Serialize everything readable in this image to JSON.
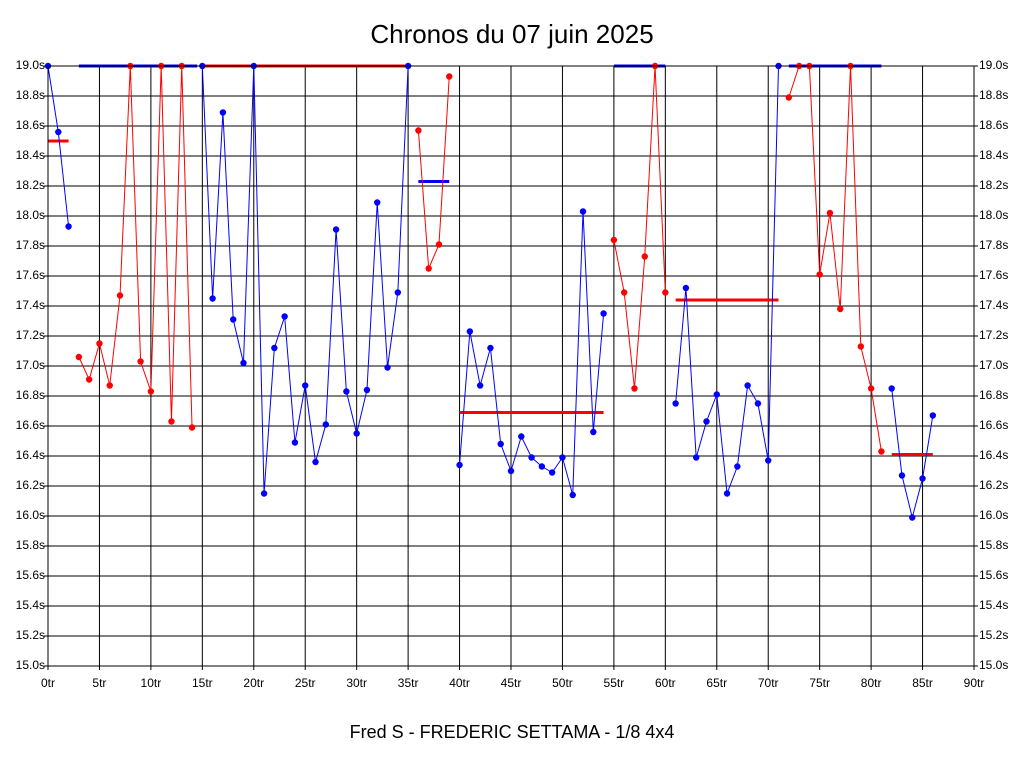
{
  "chart_data": {
    "type": "line",
    "title": "Chronos du 07 juin 2025",
    "footer": "Fred S - FREDERIC SETTAMA - 1/8 4x4",
    "grid": true,
    "xlim": [
      0,
      90
    ],
    "ylim": [
      15.0,
      19.0
    ],
    "xticks": [
      {
        "value": 0,
        "label": "0tr"
      },
      {
        "value": 5,
        "label": "5tr"
      },
      {
        "value": 10,
        "label": "10tr"
      },
      {
        "value": 15,
        "label": "15tr"
      },
      {
        "value": 20,
        "label": "20tr"
      },
      {
        "value": 25,
        "label": "25tr"
      },
      {
        "value": 30,
        "label": "30tr"
      },
      {
        "value": 35,
        "label": "35tr"
      },
      {
        "value": 40,
        "label": "40tr"
      },
      {
        "value": 45,
        "label": "45tr"
      },
      {
        "value": 50,
        "label": "50tr"
      },
      {
        "value": 55,
        "label": "55tr"
      },
      {
        "value": 60,
        "label": "60tr"
      },
      {
        "value": 65,
        "label": "65tr"
      },
      {
        "value": 70,
        "label": "70tr"
      },
      {
        "value": 75,
        "label": "75tr"
      },
      {
        "value": 80,
        "label": "80tr"
      },
      {
        "value": 85,
        "label": "85tr"
      },
      {
        "value": 90,
        "label": "90tr"
      }
    ],
    "yticks": [
      {
        "value": 15.0,
        "label": "15.0s"
      },
      {
        "value": 15.2,
        "label": "15.2s"
      },
      {
        "value": 15.4,
        "label": "15.4s"
      },
      {
        "value": 15.6,
        "label": "15.6s"
      },
      {
        "value": 15.8,
        "label": "15.8s"
      },
      {
        "value": 16.0,
        "label": "16.0s"
      },
      {
        "value": 16.2,
        "label": "16.2s"
      },
      {
        "value": 16.4,
        "label": "16.4s"
      },
      {
        "value": 16.6,
        "label": "16.6s"
      },
      {
        "value": 16.8,
        "label": "16.8s"
      },
      {
        "value": 17.0,
        "label": "17.0s"
      },
      {
        "value": 17.2,
        "label": "17.2s"
      },
      {
        "value": 17.4,
        "label": "17.4s"
      },
      {
        "value": 17.6,
        "label": "17.6s"
      },
      {
        "value": 17.8,
        "label": "17.8s"
      },
      {
        "value": 18.0,
        "label": "18.0s"
      },
      {
        "value": 18.2,
        "label": "18.2s"
      },
      {
        "value": 18.4,
        "label": "18.4s"
      },
      {
        "value": 18.6,
        "label": "18.6s"
      },
      {
        "value": 18.8,
        "label": "18.8s"
      },
      {
        "value": 19.0,
        "label": "19.0s"
      }
    ],
    "series": [
      {
        "color": "#0000ff",
        "x": [
          0,
          1,
          2
        ],
        "values": [
          19.0,
          18.56,
          17.93
        ]
      },
      {
        "color": "#ff0000",
        "x": [
          3,
          4,
          5,
          6,
          7,
          8,
          9,
          10,
          11,
          12,
          13,
          14
        ],
        "values": [
          17.06,
          16.91,
          17.15,
          16.87,
          17.47,
          19.0,
          17.03,
          16.83,
          19.0,
          16.63,
          19.0,
          16.59
        ]
      },
      {
        "color": "#0000ff",
        "x": [
          15,
          16,
          17,
          18,
          19,
          20,
          21,
          22,
          23,
          24,
          25,
          26,
          27,
          28,
          29,
          30,
          31,
          32,
          33,
          34,
          35
        ],
        "values": [
          19.0,
          17.45,
          18.69,
          17.31,
          17.02,
          19.0,
          16.15,
          17.12,
          17.33,
          16.49,
          16.87,
          16.36,
          16.61,
          17.91,
          16.83,
          16.55,
          16.84,
          18.09,
          16.99,
          17.49,
          19.0
        ]
      },
      {
        "color": "#ff0000",
        "x": [
          36,
          37,
          38,
          39
        ],
        "values": [
          18.57,
          17.65,
          17.81,
          18.93
        ]
      },
      {
        "color": "#0000ff",
        "x": [
          40,
          41,
          42,
          43,
          44,
          45,
          46,
          47,
          48,
          49,
          50,
          51,
          52,
          53,
          54
        ],
        "values": [
          16.34,
          17.23,
          16.87,
          17.12,
          16.48,
          16.3,
          16.53,
          16.39,
          16.33,
          16.29,
          16.39,
          16.14,
          18.03,
          16.56,
          17.35
        ]
      },
      {
        "color": "#ff0000",
        "x": [
          55,
          56,
          57,
          58,
          59,
          60
        ],
        "values": [
          17.84,
          17.49,
          16.85,
          17.73,
          19.0,
          17.49
        ]
      },
      {
        "color": "#0000ff",
        "x": [
          61,
          62,
          63,
          64,
          65,
          66,
          67,
          68,
          69,
          70,
          71
        ],
        "values": [
          16.75,
          17.52,
          16.39,
          16.63,
          16.81,
          16.15,
          16.33,
          16.87,
          16.75,
          16.37,
          19.0
        ]
      },
      {
        "color": "#ff0000",
        "x": [
          72,
          73,
          74,
          75,
          76,
          77,
          78,
          79,
          80,
          81
        ],
        "values": [
          18.79,
          19.0,
          19.0,
          17.61,
          18.02,
          17.38,
          19.0,
          17.13,
          16.85,
          16.43
        ]
      },
      {
        "color": "#0000ff",
        "x": [
          82,
          83,
          84,
          85,
          86
        ],
        "values": [
          16.85,
          16.27,
          15.99,
          16.25,
          16.67
        ]
      }
    ],
    "averages": [
      {
        "color": "#ff0000",
        "x": [
          0,
          2
        ],
        "value": 18.5
      },
      {
        "color": "#0000ff",
        "x": [
          3,
          14.5
        ],
        "value": 19.0
      },
      {
        "color": "#ff0000",
        "x": [
          15,
          35
        ],
        "value": 19.0
      },
      {
        "color": "#0000ff",
        "x": [
          36,
          39
        ],
        "value": 18.23
      },
      {
        "color": "#ff0000",
        "x": [
          40,
          54
        ],
        "value": 16.69
      },
      {
        "color": "#0000ff",
        "x": [
          55,
          60
        ],
        "value": 19.0
      },
      {
        "color": "#ff0000",
        "x": [
          61,
          71
        ],
        "value": 17.44
      },
      {
        "color": "#0000ff",
        "x": [
          72,
          81
        ],
        "value": 19.0
      },
      {
        "color": "#ff0000",
        "x": [
          82,
          86
        ],
        "value": 16.41
      }
    ]
  }
}
